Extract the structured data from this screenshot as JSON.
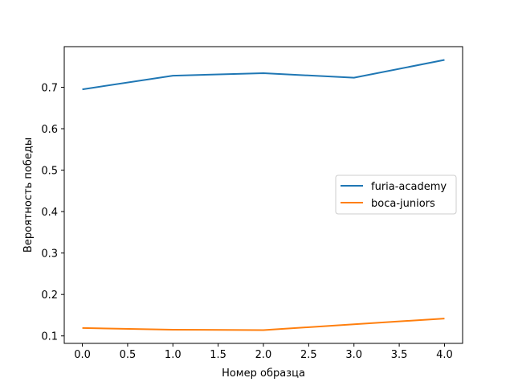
{
  "chart_data": {
    "type": "line",
    "title": "",
    "xlabel": "Номер образца",
    "ylabel": "Вероятность победы",
    "x": [
      0,
      1,
      2,
      3,
      4
    ],
    "series": [
      {
        "name": "furia-academy",
        "values": [
          0.695,
          0.728,
          0.734,
          0.723,
          0.766
        ],
        "color": "#1f77b4"
      },
      {
        "name": "boca-juniors",
        "values": [
          0.119,
          0.115,
          0.114,
          0.128,
          0.142
        ],
        "color": "#ff7f0e"
      }
    ],
    "xlim": [
      -0.2,
      4.2
    ],
    "ylim": [
      0.082,
      0.798
    ],
    "xticks": [
      "0.0",
      "0.5",
      "1.0",
      "1.5",
      "2.0",
      "2.5",
      "3.0",
      "3.5",
      "4.0"
    ],
    "yticks": [
      "0.1",
      "0.2",
      "0.3",
      "0.4",
      "0.5",
      "0.6",
      "0.7"
    ],
    "grid": false,
    "legend_position": "center-right"
  }
}
